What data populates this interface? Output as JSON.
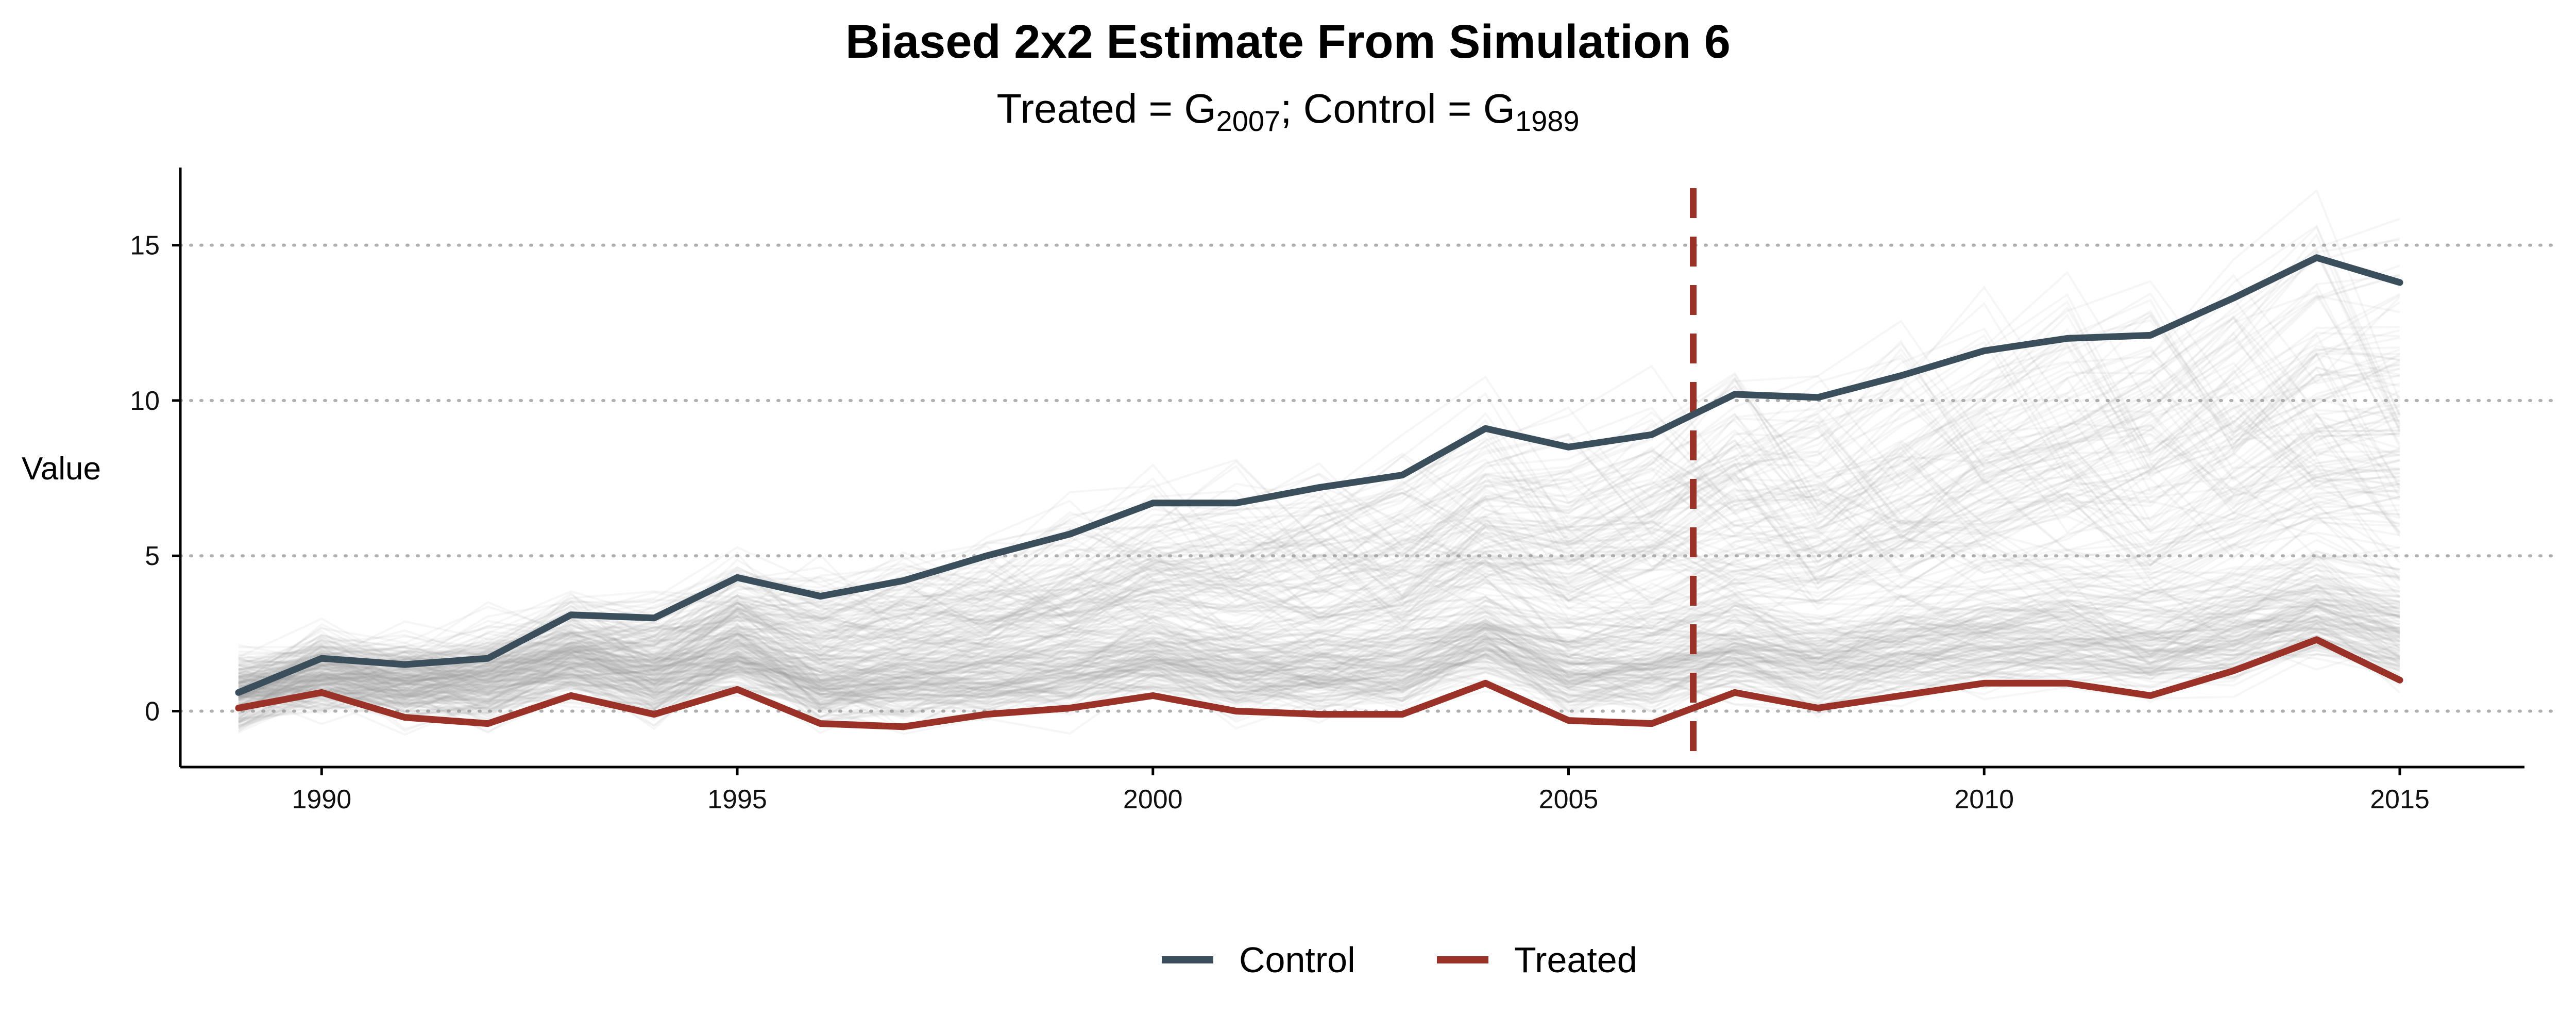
{
  "chart_data": {
    "type": "line",
    "title": "Biased 2x2 Estimate From Simulation 6",
    "subtitle": {
      "treated_prefix": "Treated = G",
      "treated_sub": "2007",
      "control_prefix": "; Control = G",
      "control_sub": "1989"
    },
    "xlabel": "",
    "ylabel": "Value",
    "xlim": [
      1988.3,
      2016.5
    ],
    "ylim": [
      -1.8,
      17.5
    ],
    "x_ticks": [
      1990,
      1995,
      2000,
      2005,
      2010,
      2015
    ],
    "y_ticks": [
      0,
      5,
      10,
      15
    ],
    "grid": "horizontal-dotted",
    "treatment_line_x": 2006.5,
    "x": [
      1989,
      1990,
      1991,
      1992,
      1993,
      1994,
      1995,
      1996,
      1997,
      1998,
      1999,
      2000,
      2001,
      2002,
      2003,
      2004,
      2005,
      2006,
      2007,
      2008,
      2009,
      2010,
      2011,
      2012,
      2013,
      2014,
      2015
    ],
    "series": [
      {
        "name": "Control",
        "color": "#3b4e5c",
        "values": [
          0.6,
          1.7,
          1.5,
          1.7,
          3.1,
          3.0,
          4.3,
          3.7,
          4.2,
          5.0,
          5.7,
          6.7,
          6.7,
          7.2,
          7.6,
          9.1,
          8.5,
          8.9,
          10.2,
          10.1,
          10.8,
          11.6,
          12.0,
          12.1,
          13.3,
          14.6,
          13.8
        ]
      },
      {
        "name": "Treated",
        "color": "#9b3228",
        "values": [
          0.1,
          0.6,
          -0.2,
          -0.4,
          0.5,
          -0.1,
          0.7,
          -0.4,
          -0.5,
          -0.1,
          0.1,
          0.5,
          0.0,
          -0.1,
          -0.1,
          0.9,
          -0.3,
          -0.4,
          0.6,
          0.1,
          0.5,
          0.9,
          0.9,
          0.5,
          1.3,
          2.3,
          1.0
        ]
      }
    ],
    "background_lines": {
      "count": 260,
      "color": "#9a9a9a"
    },
    "legend_position": "bottom",
    "colors": {
      "treatment_line": "#9b3228",
      "grid": "#b0b0b0",
      "axis": "#000000"
    }
  }
}
